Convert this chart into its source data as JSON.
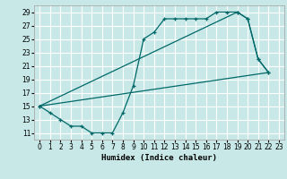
{
  "xlabel": "Humidex (Indice chaleur)",
  "bg_color": "#c8e8e8",
  "grid_color": "#ffffff",
  "line_color": "#006868",
  "xlim": [
    -0.5,
    23.5
  ],
  "ylim": [
    10.0,
    30.0
  ],
  "xticks": [
    0,
    1,
    2,
    3,
    4,
    5,
    6,
    7,
    8,
    9,
    10,
    11,
    12,
    13,
    14,
    15,
    16,
    17,
    18,
    19,
    20,
    21,
    22,
    23
  ],
  "yticks": [
    11,
    13,
    15,
    17,
    19,
    21,
    23,
    25,
    27,
    29
  ],
  "line1_x": [
    0,
    1,
    2,
    3,
    4,
    5,
    6,
    7,
    8,
    9,
    10,
    11,
    12,
    13,
    14,
    15,
    16,
    17,
    18,
    19,
    20,
    21,
    22
  ],
  "line1_y": [
    15,
    14,
    13,
    12,
    12,
    11,
    11,
    11,
    14,
    18,
    25,
    26,
    28,
    28,
    28,
    28,
    28,
    29,
    29,
    29,
    28,
    22,
    20
  ],
  "line2_x": [
    0,
    19,
    20,
    21,
    22
  ],
  "line2_y": [
    15,
    29,
    28,
    22,
    20
  ],
  "line3_x": [
    0,
    22
  ],
  "line3_y": [
    15,
    20
  ],
  "xlabel_fontsize": 6.5,
  "tick_fontsize": 5.5
}
